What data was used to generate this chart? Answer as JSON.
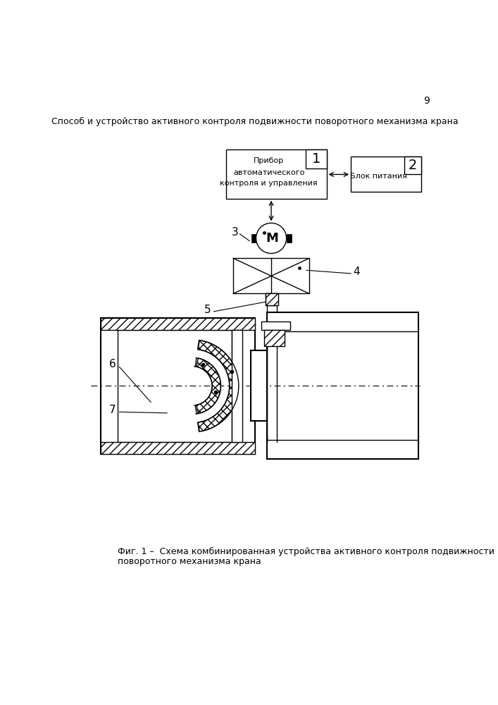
{
  "page_number": "9",
  "header_text": "Способ и устройство активного контроля подвижности поворотного механизма крана",
  "box1_lines": [
    "Прибор",
    "автоматического",
    "контроля и управления"
  ],
  "box1_number": "1",
  "box2_text": "Блок питания",
  "box2_number": "2",
  "label3": "3",
  "label4": "4",
  "label5": "5",
  "label6": "6",
  "label7": "7",
  "motor_label": "М",
  "caption_line1": "Фиг. 1 –  Схема комбинированная устройства активного контроля подвижности",
  "caption_line2": "поворотного механизма крана",
  "bg_color": "#ffffff"
}
